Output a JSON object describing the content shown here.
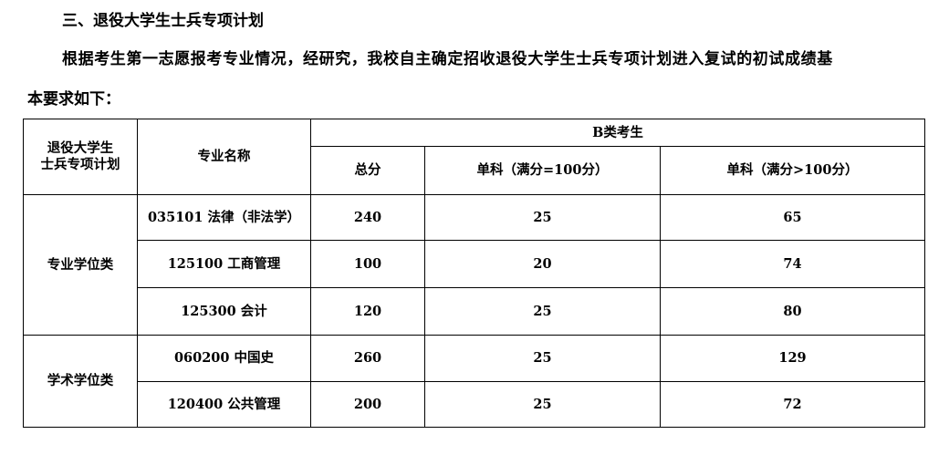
{
  "heading": "三、退役大学生士兵专项计划",
  "paragraph_line1": "根据考生第一志愿报考专业情况，经研究，我校自主确定招收退役大学生士兵专项计划进入复试的初试成绩基",
  "paragraph_line2": "本要求如下：",
  "table": {
    "col_plan": "退役大学生士兵专项计划",
    "col_plan_l1": "退役大学生",
    "col_plan_l2": "士兵专项计划",
    "col_major": "专业名称",
    "group_header": "B类考生",
    "col_total": "总分",
    "col_single100": "单科（满分=100分）",
    "col_single_gt100": "单科（满分>100分）",
    "groups": [
      {
        "name": "专业学位类",
        "rows": [
          {
            "major": "035101 法律（非法学）",
            "total": "240",
            "s100": "25",
            "sgt100": "65"
          },
          {
            "major": "125100 工商管理",
            "total": "100",
            "s100": "20",
            "sgt100": "74"
          },
          {
            "major": "125300 会计",
            "total": "120",
            "s100": "25",
            "sgt100": "80"
          }
        ]
      },
      {
        "name": "学术学位类",
        "rows": [
          {
            "major": "060200 中国史",
            "total": "260",
            "s100": "25",
            "sgt100": "129"
          },
          {
            "major": "120400 公共管理",
            "total": "200",
            "s100": "25",
            "sgt100": "72"
          }
        ]
      }
    ]
  }
}
